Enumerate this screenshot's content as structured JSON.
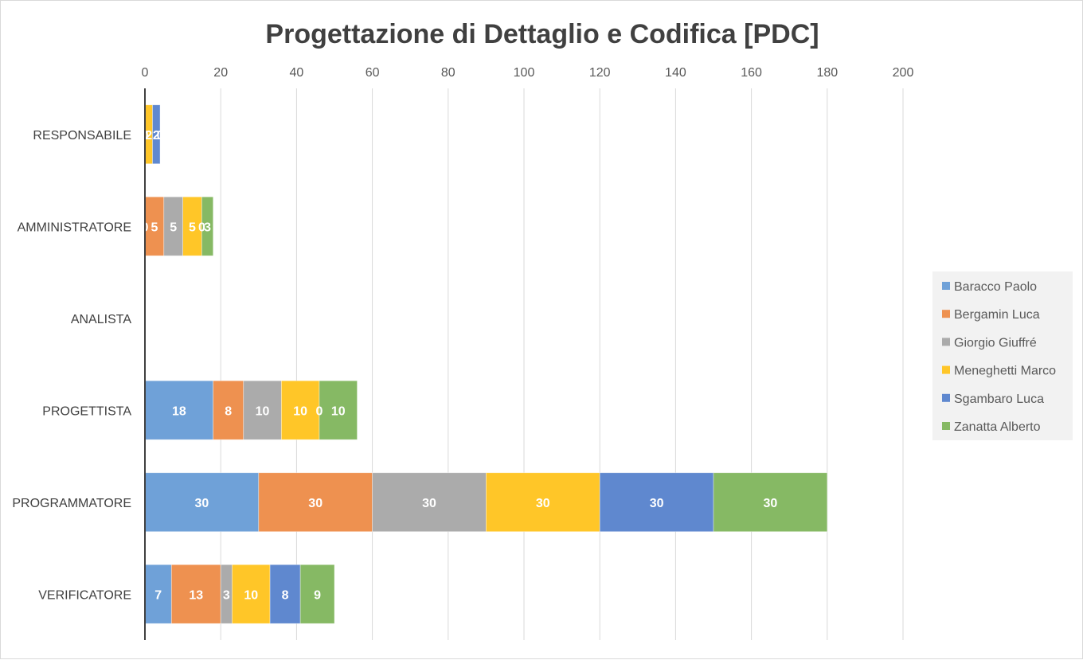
{
  "chart_data": {
    "type": "bar",
    "orientation": "horizontal",
    "stacked": true,
    "title": "Progettazione di Dettaglio e Codifica [PDC]",
    "xlabel": "",
    "ylabel": "",
    "xlim": [
      0,
      200
    ],
    "x_ticks": [
      "0",
      "20",
      "40",
      "60",
      "80",
      "100",
      "120",
      "140",
      "160",
      "180",
      "200"
    ],
    "x_axis_position": "top",
    "grid": true,
    "legend_position": "right",
    "categories": [
      "RESPONSABILE",
      "AMMINISTRATORE",
      "ANALISTA",
      "PROGETTISTA",
      "PROGRAMMATORE",
      "VERIFICATORE"
    ],
    "series": [
      {
        "name": "Baracco Paolo",
        "color": "#6fa1d8",
        "values": [
          0,
          0,
          0,
          18,
          30,
          7
        ],
        "labels": [
          "0",
          "0",
          "0",
          "18",
          "30",
          "7"
        ]
      },
      {
        "name": "Bergamin Luca",
        "color": "#ee9150",
        "values": [
          0,
          5,
          0,
          8,
          30,
          13
        ],
        "labels": [
          "0",
          "5",
          "",
          "8",
          "30",
          "13"
        ]
      },
      {
        "name": "Giorgio Giuffré",
        "color": "#ababab",
        "values": [
          0,
          5,
          0,
          10,
          30,
          3
        ],
        "labels": [
          "",
          "5",
          "",
          "10",
          "30",
          "3"
        ]
      },
      {
        "name": "Meneghetti Marco",
        "color": "#ffc628",
        "values": [
          2,
          5,
          0,
          10,
          30,
          10
        ],
        "labels": [
          "2",
          "5",
          "",
          "10",
          "30",
          "10"
        ]
      },
      {
        "name": "Sgambaro Luca",
        "color": "#5f88cf",
        "values": [
          2,
          0,
          0,
          0,
          30,
          8
        ],
        "labels": [
          "2",
          "0",
          "",
          "0",
          "30",
          "8"
        ]
      },
      {
        "name": "Zanatta Alberto",
        "color": "#86b964",
        "values": [
          0,
          3,
          0,
          10,
          30,
          9
        ],
        "labels": [
          "0",
          "3",
          "",
          "10",
          "30",
          "9"
        ]
      }
    ]
  }
}
